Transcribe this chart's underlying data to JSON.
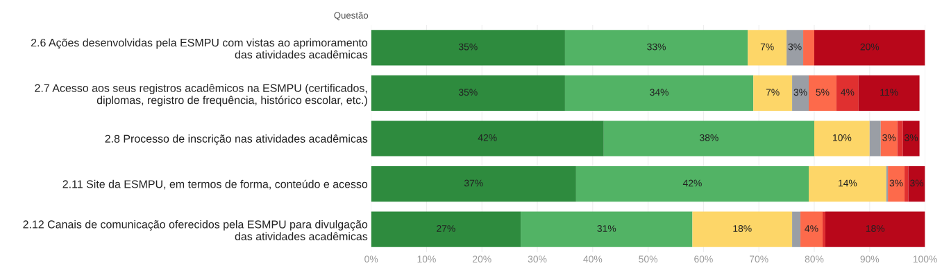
{
  "chart_data": {
    "type": "bar",
    "orientation": "horizontal",
    "stacked": true,
    "ylabel": "Questão",
    "categories": [
      "2.6 Ações desenvolvidas pela ESMPU com vistas ao aprimoramento\ndas atividades acadêmicas",
      "2.7 Acesso aos seus registros acadêmicos na ESMPU (certificados,\ndiplomas, registro de frequência, histórico escolar, etc.)",
      "2.8 Processo de inscrição nas atividades acadêmicas",
      "2.11 Site da ESMPU, em termos de forma, conteúdo e acesso",
      "2.12 Canais de comunicação oferecidos pela ESMPU para divulgação\ndas atividades acadêmicas"
    ],
    "series": [
      {
        "color": "#2e8b3e",
        "values": [
          35,
          35,
          42,
          37,
          27
        ],
        "value_labels": [
          "35%",
          "35%",
          "42%",
          "37%",
          "27%"
        ]
      },
      {
        "color": "#52b365",
        "values": [
          33,
          34,
          38,
          42,
          31
        ],
        "value_labels": [
          "33%",
          "34%",
          "38%",
          "42%",
          "31%"
        ]
      },
      {
        "color": "#fdd668",
        "values": [
          7,
          7,
          10,
          14,
          18
        ],
        "value_labels": [
          "7%",
          "7%",
          "10%",
          "14%",
          "18%"
        ]
      },
      {
        "color": "#9a9ea5",
        "values": [
          3,
          3,
          2,
          0.3,
          1.5
        ],
        "value_labels": [
          "3%",
          "3%",
          null,
          null,
          null
        ]
      },
      {
        "color": "#fd6a4b",
        "values": [
          2,
          5,
          3,
          3,
          4
        ],
        "value_labels": [
          null,
          "5%",
          "3%",
          "3%",
          "4%"
        ]
      },
      {
        "color": "#e03030",
        "values": [
          0,
          4,
          1,
          0.7,
          0.5
        ],
        "value_labels": [
          null,
          "4%",
          null,
          null,
          null
        ]
      },
      {
        "color": "#b8071a",
        "values": [
          20,
          11,
          3,
          3,
          18
        ],
        "value_labels": [
          "20%",
          "11%",
          "3%",
          "3%",
          "18%"
        ]
      }
    ],
    "xlim": [
      0,
      100
    ],
    "xticks": [
      {
        "value": 0,
        "label": "0%"
      },
      {
        "value": 10,
        "label": "10%"
      },
      {
        "value": 20,
        "label": "20%"
      },
      {
        "value": 30,
        "label": "30%"
      },
      {
        "value": 40,
        "label": "40%"
      },
      {
        "value": 50,
        "label": "50%"
      },
      {
        "value": 60,
        "label": "60%"
      },
      {
        "value": 70,
        "label": "70%"
      },
      {
        "value": 80,
        "label": "80%"
      },
      {
        "value": 90,
        "label": "90%"
      },
      {
        "value": 100,
        "label": "100%"
      }
    ],
    "grid": "x",
    "legend": false
  }
}
